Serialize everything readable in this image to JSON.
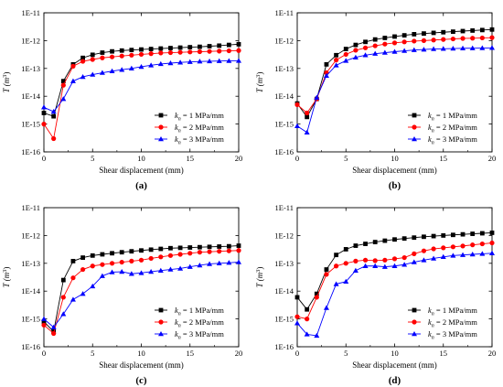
{
  "legend_prefix": "k",
  "legend_sub": "n",
  "series_colors": [
    "#000000",
    "#ff0000",
    "#0000ff"
  ],
  "chart_data": [
    {
      "panel": "(a)",
      "type": "line",
      "xlabel": "Shear displacement (mm)",
      "ylabel": "T (m",
      "ylabel_sup": "3",
      "ylabel_close": ")",
      "yscale": "log",
      "xlim": [
        0,
        20
      ],
      "ylim": [
        "1E-16",
        "1E-11"
      ],
      "xticks": [
        "0",
        "5",
        "10",
        "15",
        "20"
      ],
      "yticks": [
        "1E-16",
        "1E-15",
        "1E-14",
        "1E-13",
        "1E-12",
        "1E-11"
      ],
      "legend_position": "lower-right",
      "x": [
        0,
        1,
        2,
        3,
        4,
        5,
        6,
        7,
        8,
        9,
        10,
        11,
        12,
        13,
        14,
        15,
        16,
        17,
        18,
        19,
        20
      ],
      "series": [
        {
          "name": " = 1 MPa/mm",
          "marker": "square",
          "values": [
            2.5e-15,
            1.9e-15,
            3.5e-14,
            1.4e-13,
            2.4e-13,
            3.1e-13,
            3.7e-13,
            4.1e-13,
            4.4e-13,
            4.6e-13,
            4.8e-13,
            5e-13,
            5.2e-13,
            5.4e-13,
            5.6e-13,
            5.8e-13,
            6e-13,
            6.3e-13,
            6.6e-13,
            7e-13,
            7.4e-13
          ]
        },
        {
          "name": " = 2 MPa/mm",
          "marker": "circle",
          "values": [
            1e-15,
            3e-16,
            2.5e-14,
            1.2e-13,
            1.8e-13,
            2.1e-13,
            2.4e-13,
            2.6e-13,
            2.8e-13,
            3e-13,
            3.2e-13,
            3.4e-13,
            3.6e-13,
            3.7e-13,
            3.8e-13,
            3.9e-13,
            4e-13,
            4.1e-13,
            4.2e-13,
            4.3e-13,
            4.4e-13
          ]
        },
        {
          "name": " = 3 MPa/mm",
          "marker": "triangle",
          "values": [
            4e-15,
            2.8e-15,
            8e-15,
            3.5e-14,
            5e-14,
            6e-14,
            7e-14,
            8e-14,
            9e-14,
            1e-13,
            1.15e-13,
            1.3e-13,
            1.45e-13,
            1.55e-13,
            1.65e-13,
            1.72e-13,
            1.78e-13,
            1.82e-13,
            1.85e-13,
            1.88e-13,
            1.9e-13
          ]
        }
      ]
    },
    {
      "panel": "(b)",
      "type": "line",
      "xlabel": "Shear displacement (mm)",
      "ylabel": "T (m",
      "ylabel_sup": "3",
      "ylabel_close": ")",
      "yscale": "log",
      "xlim": [
        0,
        20
      ],
      "ylim": [
        "1E-16",
        "1E-11"
      ],
      "xticks": [
        "0",
        "5",
        "10",
        "15",
        "20"
      ],
      "yticks": [
        "1E-16",
        "1E-15",
        "1E-14",
        "1E-13",
        "1E-12",
        "1E-11"
      ],
      "legend_position": "lower-right",
      "x": [
        0,
        1,
        2,
        3,
        4,
        5,
        6,
        7,
        8,
        9,
        10,
        11,
        12,
        13,
        14,
        15,
        16,
        17,
        18,
        19,
        20
      ],
      "series": [
        {
          "name": " = 1 MPa/mm",
          "marker": "square",
          "values": [
            5.5e-15,
            1.8e-15,
            8e-15,
            1.4e-13,
            3e-13,
            5e-13,
            7e-13,
            9e-13,
            1.1e-12,
            1.25e-12,
            1.4e-12,
            1.55e-12,
            1.7e-12,
            1.8e-12,
            1.9e-12,
            2e-12,
            2.1e-12,
            2.2e-12,
            2.3e-12,
            2.4e-12,
            2.5e-12
          ]
        },
        {
          "name": " = 2 MPa/mm",
          "marker": "circle",
          "values": [
            5e-15,
            2.5e-15,
            8e-15,
            7e-14,
            2e-13,
            3.2e-13,
            4.5e-13,
            5.5e-13,
            6.5e-13,
            7.5e-13,
            8.3e-13,
            9e-13,
            9.6e-13,
            1e-12,
            1.05e-12,
            1.1e-12,
            1.15e-12,
            1.2e-12,
            1.22e-12,
            1.25e-12,
            1.28e-12
          ]
        },
        {
          "name": " = 3 MPa/mm",
          "marker": "triangle",
          "values": [
            8.5e-16,
            5e-16,
            9e-15,
            5.5e-14,
            1.3e-13,
            1.9e-13,
            2.5e-13,
            3e-13,
            3.4e-13,
            3.7e-13,
            4e-13,
            4.3e-13,
            4.6e-13,
            4.8e-13,
            5e-13,
            5.1e-13,
            5.2e-13,
            5.3e-13,
            5.35e-13,
            5.4e-13,
            5.5e-13
          ]
        }
      ]
    },
    {
      "panel": "(c)",
      "type": "line",
      "xlabel": "Shear displacement (mm)",
      "ylabel": "T (m",
      "ylabel_sup": "3",
      "ylabel_close": ")",
      "yscale": "log",
      "xlim": [
        0,
        20
      ],
      "ylim": [
        "1E-16",
        "1E-11"
      ],
      "xticks": [
        "0",
        "5",
        "10",
        "15",
        "20"
      ],
      "yticks": [
        "1E-16",
        "1E-15",
        "1E-14",
        "1E-13",
        "1E-12",
        "1E-11"
      ],
      "legend_position": "lower-right",
      "x": [
        0,
        1,
        2,
        3,
        4,
        5,
        6,
        7,
        8,
        9,
        10,
        11,
        12,
        13,
        14,
        15,
        16,
        17,
        18,
        19,
        20
      ],
      "series": [
        {
          "name": " = 1 MPa/mm",
          "marker": "square",
          "values": [
            8e-16,
            3.5e-16,
            2.5e-14,
            1.2e-13,
            1.6e-13,
            1.9e-13,
            2.1e-13,
            2.3e-13,
            2.5e-13,
            2.7e-13,
            2.9e-13,
            3.1e-13,
            3.3e-13,
            3.5e-13,
            3.6e-13,
            3.7e-13,
            3.8e-13,
            3.9e-13,
            4e-13,
            4.1e-13,
            4.3e-13
          ]
        },
        {
          "name": " = 2 MPa/mm",
          "marker": "circle",
          "values": [
            6e-16,
            3e-16,
            6e-15,
            3e-14,
            6e-14,
            8e-14,
            9e-14,
            1e-13,
            1.1e-13,
            1.2e-13,
            1.3e-13,
            1.5e-13,
            1.7e-13,
            1.9e-13,
            2.1e-13,
            2.3e-13,
            2.5e-13,
            2.6e-13,
            2.7e-13,
            2.8e-13,
            2.9e-13
          ]
        },
        {
          "name": " = 3 MPa/mm",
          "marker": "triangle",
          "values": [
            1e-15,
            5e-16,
            1.5e-15,
            5e-15,
            8e-15,
            1.5e-14,
            3.5e-14,
            4.8e-14,
            5e-14,
            4.2e-14,
            4.5e-14,
            5e-14,
            5.5e-14,
            6e-14,
            6.5e-14,
            7.5e-14,
            8.5e-14,
            9.5e-14,
            1e-13,
            1.05e-13,
            1.1e-13
          ]
        }
      ]
    },
    {
      "panel": "(d)",
      "type": "line",
      "xlabel": "Shear displacement (mm)",
      "ylabel": "T (m",
      "ylabel_sup": "3",
      "ylabel_close": ")",
      "yscale": "log",
      "xlim": [
        0,
        20
      ],
      "ylim": [
        "1E-16",
        "1E-11"
      ],
      "xticks": [
        "0",
        "5",
        "10",
        "15",
        "20"
      ],
      "yticks": [
        "1E-16",
        "1E-15",
        "1E-14",
        "1E-13",
        "1E-12",
        "1E-11"
      ],
      "legend_position": "lower-right",
      "x": [
        0,
        1,
        2,
        3,
        4,
        5,
        6,
        7,
        8,
        9,
        10,
        11,
        12,
        13,
        14,
        15,
        16,
        17,
        18,
        19,
        20
      ],
      "series": [
        {
          "name": " = 1 MPa/mm",
          "marker": "square",
          "values": [
            6e-15,
            2.2e-15,
            8e-15,
            6e-14,
            2e-13,
            3.2e-13,
            4.3e-13,
            5e-13,
            5.8e-13,
            6.5e-13,
            7.2e-13,
            7.8e-13,
            8.4e-13,
            9e-13,
            9.5e-13,
            1e-12,
            1.05e-12,
            1.1e-12,
            1.15e-12,
            1.2e-12,
            1.25e-12
          ]
        },
        {
          "name": " = 2 MPa/mm",
          "marker": "circle",
          "values": [
            1.2e-15,
            1e-15,
            6e-15,
            4e-14,
            8e-14,
            1e-13,
            1.2e-13,
            1.3e-13,
            1.25e-13,
            1.3e-13,
            1.45e-13,
            1.6e-13,
            2.2e-13,
            2.8e-13,
            3.3e-13,
            3.6e-13,
            3.9e-13,
            4.2e-13,
            4.6e-13,
            5e-13,
            5.4e-13
          ]
        },
        {
          "name": " = 3 MPa/mm",
          "marker": "triangle",
          "values": [
            7e-16,
            2.8e-16,
            2.5e-16,
            2.5e-15,
            1.8e-14,
            2.2e-14,
            5.5e-14,
            8e-14,
            8e-14,
            7.5e-14,
            8e-14,
            9e-14,
            1.1e-13,
            1.3e-13,
            1.5e-13,
            1.7e-13,
            1.9e-13,
            2e-13,
            2.1e-13,
            2.2e-13,
            2.3e-13
          ]
        }
      ]
    }
  ]
}
